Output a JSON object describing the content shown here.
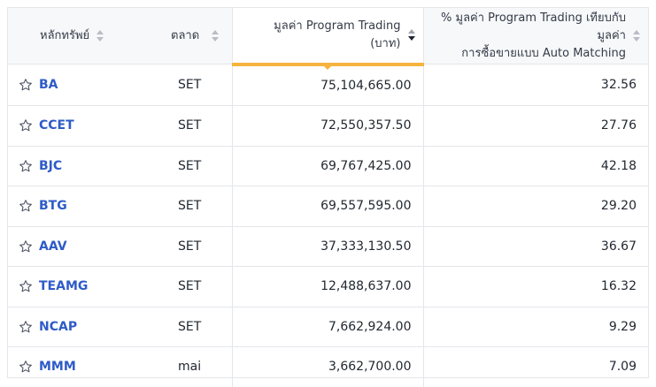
{
  "table": {
    "columns": [
      {
        "label": "หลักทรัพย์"
      },
      {
        "label": "ตลาด"
      },
      {
        "label": "มูลค่า Program Trading (บาท)"
      },
      {
        "label_line1": "% มูลค่า Program Trading เทียบกับมูลค่า",
        "label_line2": "การซื้อขายแบบ Auto Matching"
      }
    ],
    "sorted_column": "มูลค่า Program Trading (บาท)",
    "sort_direction": "descending",
    "rows": [
      {
        "symbol": "BA",
        "market": "SET",
        "value": "75,104,665.00",
        "percent": "32.56"
      },
      {
        "symbol": "CCET",
        "market": "SET",
        "value": "72,550,357.50",
        "percent": "27.76"
      },
      {
        "symbol": "BJC",
        "market": "SET",
        "value": "69,767,425.00",
        "percent": "42.18"
      },
      {
        "symbol": "BTG",
        "market": "SET",
        "value": "69,557,595.00",
        "percent": "29.20"
      },
      {
        "symbol": "AAV",
        "market": "SET",
        "value": "37,333,130.50",
        "percent": "36.67"
      },
      {
        "symbol": "TEAMG",
        "market": "SET",
        "value": "12,488,637.00",
        "percent": "16.32"
      },
      {
        "symbol": "NCAP",
        "market": "SET",
        "value": "7,662,924.00",
        "percent": "9.29"
      },
      {
        "symbol": "MMM",
        "market": "mai",
        "value": "3,662,700.00",
        "percent": "7.09"
      }
    ]
  },
  "colors": {
    "accent": "#f6b33d",
    "link": "#2e5bc8",
    "border": "#e4e6ea",
    "header_bg": "#f7f8fa"
  },
  "icons": {
    "favorite": "star-outline-icon",
    "sort": "sort-arrows-icon"
  }
}
